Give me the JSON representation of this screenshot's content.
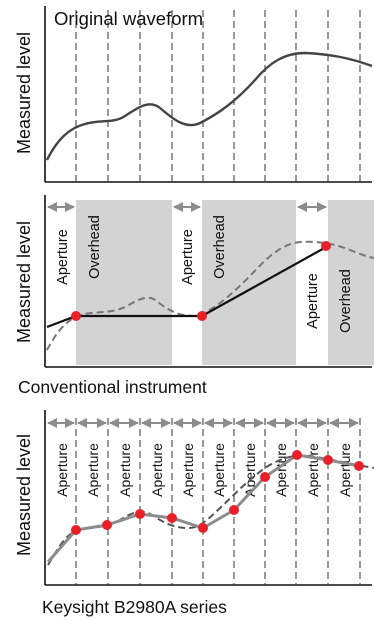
{
  "panels": {
    "original": {
      "title": "Original waveform",
      "ylabel": "Measured level"
    },
    "conventional": {
      "ylabel": "Measured level",
      "caption": "Conventional instrument",
      "aperture_label": "Aperture",
      "overhead_label": "Overhead"
    },
    "b2980": {
      "ylabel": "Measured level",
      "caption": "Keysight B2980A series",
      "aperture_label": "Aperture"
    }
  },
  "colors": {
    "waveform": "#444444",
    "sample_point": "#e8202a",
    "overhead_fill": "#d3d3d3",
    "arrow": "#8c8c8c",
    "dashed_grid": "#333333",
    "measured_line": "#111111"
  }
}
